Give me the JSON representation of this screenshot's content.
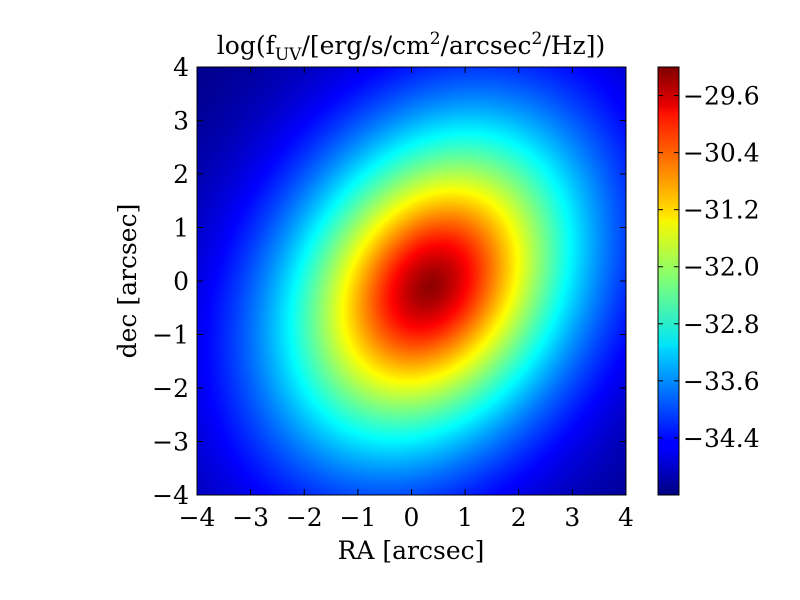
{
  "chart_data": {
    "type": "heatmap",
    "title": "log(f_UV/[erg/s/cm^2/arcsec^2/Hz])",
    "title_parts": {
      "pre": "log(f",
      "sub": "UV",
      "mid1": "/[erg/s/cm",
      "sup1": "2",
      "mid2": "/arcsec",
      "sup2": "2",
      "post": "/Hz])"
    },
    "xlabel": "RA [arcsec]",
    "ylabel": "dec [arcsec]",
    "xlim": [
      -4,
      4
    ],
    "ylim": [
      -4,
      4
    ],
    "x_ticks": [
      -4,
      -3,
      -2,
      -1,
      0,
      1,
      2,
      3,
      4
    ],
    "x_tick_labels": [
      "−4",
      "−3",
      "−2",
      "−1",
      "0",
      "1",
      "2",
      "3",
      "4"
    ],
    "y_ticks": [
      -4,
      -3,
      -2,
      -1,
      0,
      1,
      2,
      3,
      4
    ],
    "y_tick_labels": [
      "−4",
      "−3",
      "−2",
      "−1",
      "0",
      "1",
      "2",
      "3",
      "4"
    ],
    "colormap": "jet",
    "colorbar": {
      "min": -35.2,
      "max": -29.2,
      "ticks": [
        -29.6,
        -30.4,
        -31.2,
        -32.0,
        -32.8,
        -33.6,
        -34.4
      ],
      "tick_labels": [
        "−29.6",
        "−30.4",
        "−31.2",
        "−32.0",
        "−32.8",
        "−33.6",
        "−34.4"
      ]
    },
    "field": {
      "center": [
        0.35,
        -0.1
      ],
      "peak_value": -29.3,
      "floor_value": -35.2,
      "position_angle_deg": 35,
      "sigma_major": 2.05,
      "sigma_minor": 1.55,
      "profile_exponent": 1.6
    },
    "grid": false
  }
}
